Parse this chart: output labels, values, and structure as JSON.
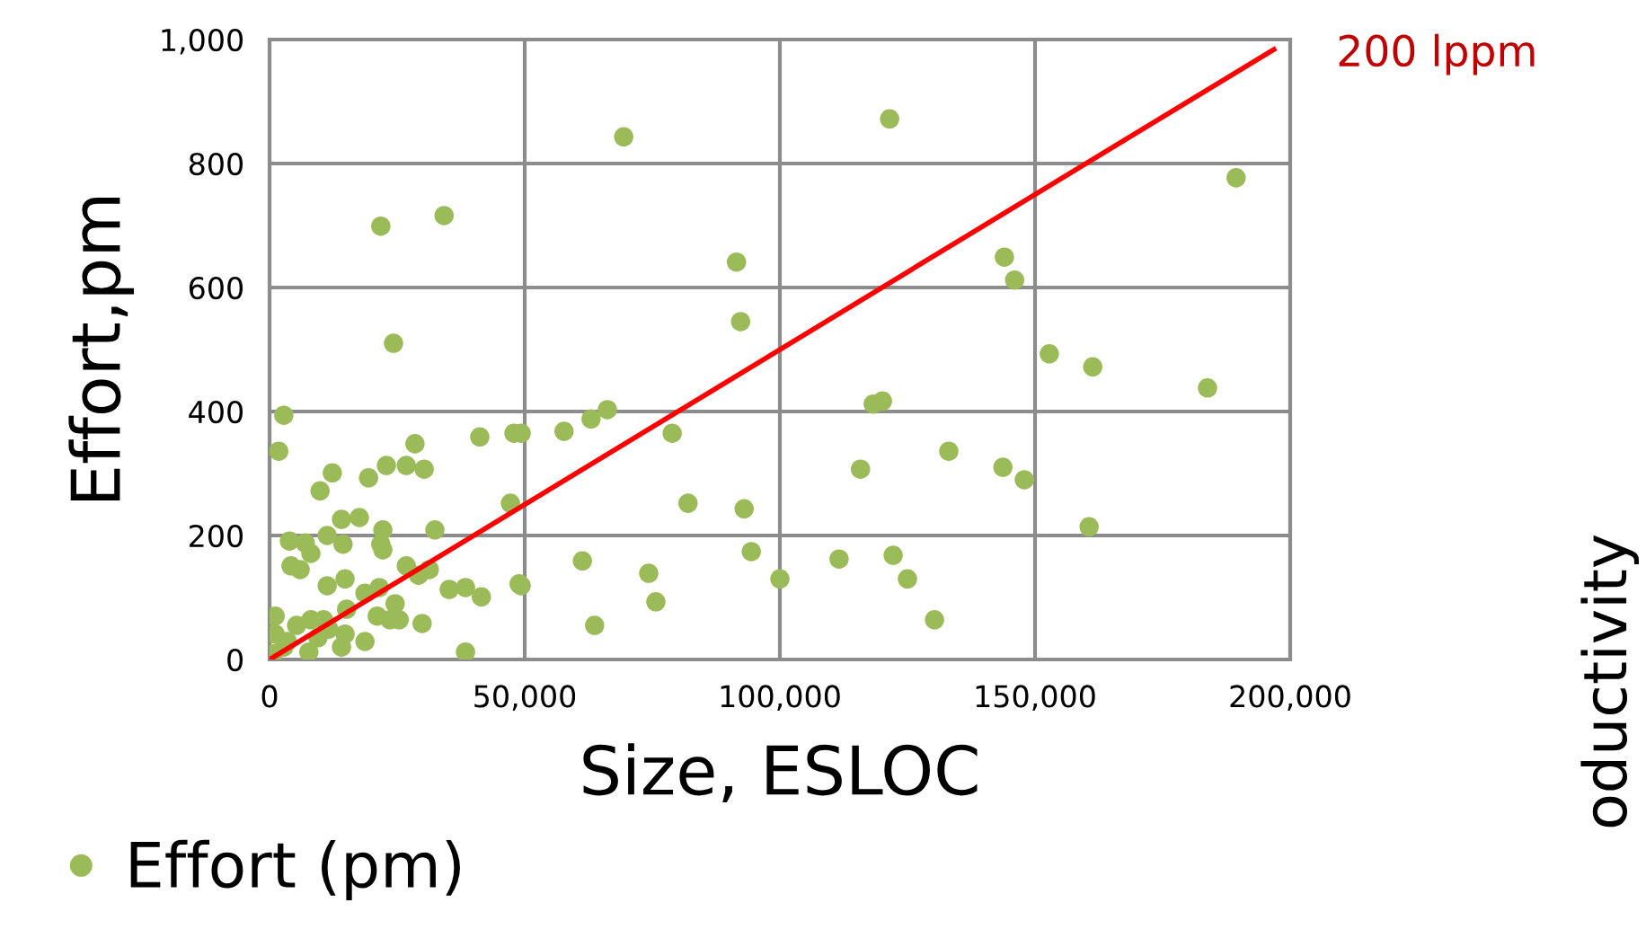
{
  "chart_data": {
    "type": "scatter",
    "xlabel": "Size, ESLOC",
    "ylabel": "Effort,pm",
    "xlim": [
      0,
      200000
    ],
    "xticks": [
      {
        "value": 0,
        "label": "0"
      },
      {
        "value": 50000,
        "label": "50,000"
      },
      {
        "value": 100000,
        "label": "100,000"
      },
      {
        "value": 150000,
        "label": "150,000"
      },
      {
        "value": 200000,
        "label": "200,000"
      }
    ],
    "ylim": [
      0,
      1000
    ],
    "yticks": [
      0,
      200,
      400,
      600,
      800,
      {
        "value": 1000,
        "label": "1,000"
      }
    ],
    "grid": true,
    "legend": "bottom left",
    "marker": "circle",
    "annotations": [
      "oductivity"
    ],
    "series": [
      {
        "name": "Effort (pm)",
        "color": "#9bbb59",
        "x": [
          69400,
          121500,
          21800,
          34200,
          144000,
          146000,
          91500,
          92300,
          189400,
          152800,
          161300,
          183800,
          118300,
          120100,
          115800,
          133100,
          143700,
          147900,
          160600,
          78900,
          63000,
          66200,
          57700,
          49300,
          82000,
          93000,
          61300,
          74300,
          75700,
          63700,
          94400,
          100000,
          111600,
          122200,
          125000,
          130300,
          49300,
          24300,
          2800,
          1800,
          28500,
          41200,
          47900,
          12300,
          9900,
          19400,
          22900,
          26800,
          30300,
          47200,
          14100,
          17600,
          22200,
          32400,
          3900,
          7000,
          11300,
          8100,
          14400,
          21800,
          22200,
          4200,
          6000,
          26800,
          29200,
          31300,
          11300,
          14800,
          35200,
          38400,
          41500,
          48900,
          1100,
          18700,
          21500,
          24600,
          15100,
          21100,
          23600,
          25400,
          29900,
          8100,
          10600,
          5300,
          1100,
          3500,
          14800,
          18700,
          14100,
          7700,
          38400,
          700,
          11600,
          2800,
          9500
        ],
        "values": [
          843,
          872,
          699,
          716,
          649,
          612,
          641,
          545,
          777,
          493,
          472,
          438,
          412,
          417,
          307,
          336,
          310,
          290,
          214,
          365,
          388,
          403,
          368,
          365,
          252,
          243,
          159,
          139,
          93,
          55,
          174,
          130,
          162,
          168,
          130,
          64,
          119,
          510,
          394,
          336,
          348,
          359,
          365,
          301,
          272,
          293,
          313,
          313,
          307,
          252,
          226,
          229,
          209,
          209,
          191,
          188,
          200,
          171,
          186,
          186,
          177,
          151,
          145,
          151,
          136,
          145,
          119,
          130,
          113,
          116,
          101,
          122,
          70,
          107,
          116,
          90,
          81,
          70,
          64,
          64,
          58,
          64,
          64,
          55,
          41,
          29,
          41,
          29,
          20,
          12,
          12,
          9,
          49,
          20,
          35
        ]
      },
      {
        "name": "200 lppm",
        "color": "#ff0000",
        "type": "line",
        "marker": "none",
        "x": [
          0,
          196800
        ],
        "values": [
          0,
          984
        ]
      }
    ]
  }
}
